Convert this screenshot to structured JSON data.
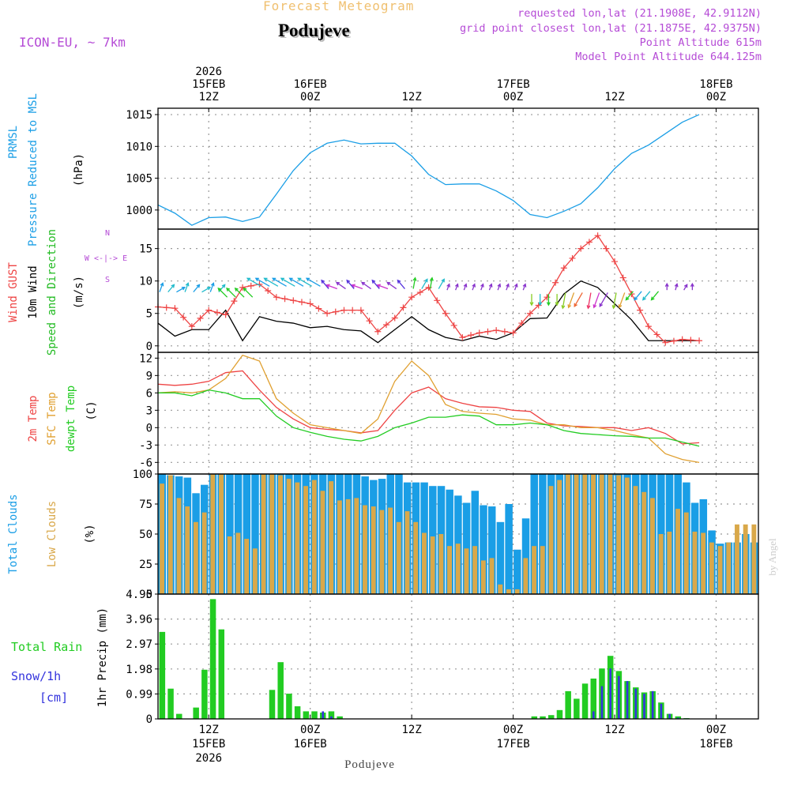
{
  "header": {
    "title": "Forecast Meteogram",
    "location": "Podujeve",
    "model": "ICON-EU, ~ 7km",
    "requested": "requested lon,lat (21.1908E, 42.9112N)",
    "gridpoint": "grid point closest lon,lat (21.1875E, 42.9375N)",
    "point_altitude": "Point Altitude 615m",
    "model_altitude": "Model Point Altitude 644.125m",
    "bottom_label": "Podujeve",
    "credit": "by Angel"
  },
  "colors": {
    "pressure": "#1a9ee6",
    "gust": "#ee4444",
    "wind": "#000000",
    "direction": "#22bb22",
    "temp": "#ee4444",
    "sfc": "#e0a030",
    "dewpt": "#22cc22",
    "total_clouds": "#1a9ee6",
    "low_clouds": "#d9a84a",
    "rain": "#22cc22",
    "snow": "#3333dd",
    "arrow_palette": [
      "#1a9ee6",
      "#22bbcc",
      "#22cc22",
      "#88cc22",
      "#e0a030",
      "#ee6633",
      "#ee3366",
      "#cc33cc",
      "#8833cc",
      "#5533dd"
    ]
  },
  "chart_data": [
    {
      "type": "line",
      "panel": "pressure",
      "ylabel": [
        "PRMSL",
        "Pressure Reduced to MSL",
        "(hPa)"
      ],
      "ylim": [
        997,
        1016
      ],
      "yticks": [
        1000,
        1005,
        1010,
        1015
      ],
      "x": [
        0,
        2,
        4,
        6,
        8,
        10,
        12,
        14,
        16,
        18,
        20,
        22,
        24,
        26,
        28,
        30,
        32,
        34,
        36,
        38,
        40,
        42,
        44,
        46,
        48,
        50,
        52,
        54,
        56,
        58,
        60,
        62,
        64
      ],
      "values": [
        1000.8,
        999.5,
        997.6,
        998.8,
        998.9,
        998.2,
        998.9,
        1002.5,
        1006.2,
        1009.0,
        1010.5,
        1011.0,
        1010.4,
        1010.5,
        1010.5,
        1008.5,
        1005.6,
        1004.0,
        1004.1,
        1004.1,
        1003.0,
        1001.5,
        999.3,
        998.8,
        999.8,
        1001.0,
        1003.5,
        1006.5,
        1008.9,
        1010.2,
        1012.0,
        1013.8,
        1015.0
      ]
    },
    {
      "type": "line",
      "panel": "wind",
      "ylabel": [
        "Wind GUST",
        "10m Wind",
        "Speed and Direction",
        "(m/s)"
      ],
      "compass": [
        "N",
        "W <-|-> E",
        "S"
      ],
      "ylim": [
        -1,
        18
      ],
      "yticks": [
        0,
        5,
        10,
        15
      ],
      "x": [
        0,
        2,
        4,
        6,
        8,
        10,
        12,
        14,
        16,
        18,
        20,
        22,
        24,
        26,
        28,
        30,
        32,
        34,
        36,
        38,
        40,
        42,
        44,
        46,
        48,
        50,
        52,
        54,
        56,
        58,
        60,
        62,
        64
      ],
      "series": [
        {
          "name": "Wind GUST",
          "values": [
            6.0,
            5.8,
            3.0,
            5.5,
            4.8,
            9.0,
            9.5,
            7.5,
            7.0,
            6.5,
            5.0,
            5.5,
            5.5,
            2.2,
            4.3,
            7.5,
            9.0,
            5.0,
            1.3,
            2.0,
            2.4,
            2.0,
            5.0,
            7.5,
            12.0,
            15.0,
            17.0,
            13.0,
            8.0,
            3.0,
            0.5,
            1.0,
            0.8
          ]
        },
        {
          "name": "10m Wind",
          "values": [
            3.5,
            1.5,
            2.5,
            2.5,
            5.5,
            0.8,
            4.5,
            3.8,
            3.5,
            2.8,
            3.0,
            2.5,
            2.3,
            0.5,
            2.5,
            4.5,
            2.5,
            1.3,
            0.8,
            1.5,
            1.0,
            2.0,
            4.2,
            4.3,
            8.0,
            10.0,
            9.0,
            6.5,
            4.0,
            0.8,
            0.8,
            0.8,
            0.8
          ]
        }
      ],
      "direction_arrows": {
        "start_hour": 0,
        "step_hours": 1,
        "count": 64
      }
    },
    {
      "type": "line",
      "panel": "temperature",
      "ylabel": [
        "2m Temp",
        "SFC Temp",
        "dewpt Temp",
        "(C)"
      ],
      "ylim": [
        -8,
        13
      ],
      "yticks": [
        -6,
        -3,
        0,
        3,
        6,
        9,
        12
      ],
      "x": [
        0,
        2,
        4,
        6,
        8,
        10,
        12,
        14,
        16,
        18,
        20,
        22,
        24,
        26,
        28,
        30,
        32,
        34,
        36,
        38,
        40,
        42,
        44,
        46,
        48,
        50,
        52,
        54,
        56,
        58,
        60,
        62,
        64
      ],
      "series": [
        {
          "name": "2m Temp",
          "values": [
            7.5,
            7.3,
            7.5,
            8.0,
            9.5,
            9.8,
            6.5,
            3.5,
            1.5,
            0.0,
            -0.3,
            -0.5,
            -0.9,
            -0.5,
            3.0,
            6.0,
            7.0,
            5.0,
            4.2,
            3.6,
            3.5,
            3.0,
            2.8,
            0.8,
            0.3,
            0.2,
            0.0,
            0.0,
            -0.5,
            0.0,
            -1.0,
            -2.8,
            -2.6
          ]
        },
        {
          "name": "SFC Temp",
          "values": [
            6.0,
            6.2,
            6.0,
            6.5,
            8.5,
            12.5,
            11.5,
            5.0,
            2.5,
            0.5,
            0.0,
            -0.5,
            -1.0,
            1.5,
            8.0,
            11.5,
            9.0,
            4.0,
            2.8,
            2.5,
            2.3,
            1.5,
            1.3,
            0.5,
            0.5,
            0.0,
            0.0,
            -0.5,
            -1.2,
            -1.8,
            -4.5,
            -5.5,
            -6.0
          ]
        },
        {
          "name": "dewpt Temp",
          "values": [
            6.0,
            6.0,
            5.5,
            6.5,
            6.0,
            5.0,
            5.0,
            2.0,
            0.0,
            -0.8,
            -1.5,
            -2.0,
            -2.3,
            -1.5,
            0.0,
            0.8,
            1.8,
            1.8,
            2.2,
            2.0,
            0.5,
            0.5,
            0.8,
            0.5,
            -0.5,
            -1.0,
            -1.2,
            -1.4,
            -1.5,
            -1.8,
            -1.8,
            -2.5,
            -3.2
          ]
        }
      ]
    },
    {
      "type": "bar",
      "panel": "clouds",
      "ylabel": [
        "Total Clouds",
        "Low Clouds",
        "(%)"
      ],
      "ylim": [
        0,
        100
      ],
      "yticks": [
        0,
        25,
        50,
        75,
        100
      ],
      "x_start_hour": 0,
      "series": [
        {
          "name": "Total Clouds",
          "values": [
            100,
            99,
            98,
            97,
            84,
            91,
            100,
            100,
            100,
            100,
            100,
            100,
            100,
            100,
            100,
            100,
            100,
            100,
            100,
            100,
            100,
            100,
            100,
            100,
            98,
            95,
            96,
            100,
            100,
            93,
            93,
            93,
            90,
            90,
            87,
            82,
            76,
            86,
            74,
            73,
            60,
            75,
            37,
            63,
            100,
            100,
            100,
            100,
            100,
            100,
            100,
            100,
            100,
            100,
            100,
            100,
            100,
            100,
            100,
            100,
            100,
            100,
            93,
            76,
            79,
            53,
            42,
            43,
            43,
            50,
            43
          ]
        },
        {
          "name": "Low Clouds",
          "values": [
            92,
            99,
            80,
            73,
            60,
            68,
            100,
            100,
            48,
            51,
            46,
            38,
            100,
            100,
            99,
            96,
            93,
            90,
            95,
            86,
            94,
            78,
            79,
            80,
            74,
            73,
            70,
            72,
            60,
            69,
            60,
            51,
            48,
            50,
            40,
            42,
            38,
            40,
            28,
            30,
            8,
            4,
            4,
            30,
            40,
            40,
            90,
            95,
            100,
            100,
            100,
            100,
            100,
            100,
            99,
            97,
            90,
            85,
            80,
            50,
            52,
            71,
            68,
            52,
            51,
            43,
            40,
            43,
            58,
            58,
            58
          ]
        }
      ]
    },
    {
      "type": "bar",
      "panel": "precipitation",
      "ylabel": [
        "Total Rain",
        "Snow/1h",
        "[cm]",
        "1hr Precip (mm)"
      ],
      "ylim": [
        0,
        4.95
      ],
      "yticks": [
        0,
        0.99,
        1.98,
        2.97,
        3.96,
        4.95
      ],
      "x_start_hour": 0,
      "series": [
        {
          "name": "Total Rain",
          "values": [
            3.45,
            1.2,
            0.2,
            0,
            0.45,
            1.95,
            4.75,
            3.55,
            0,
            0,
            0,
            0,
            0,
            1.15,
            2.25,
            1.0,
            0.5,
            0.3,
            0.3,
            0.25,
            0.3,
            0.1,
            0,
            0,
            0,
            0,
            0,
            0,
            0,
            0,
            0,
            0,
            0,
            0,
            0,
            0,
            0,
            0,
            0,
            0,
            0,
            0,
            0,
            0,
            0.1,
            0.1,
            0.15,
            0.35,
            1.1,
            0.8,
            1.4,
            1.6,
            2.0,
            2.5,
            1.9,
            1.5,
            1.25,
            1.05,
            1.1,
            0.65,
            0.2,
            0.1,
            0.03
          ]
        },
        {
          "name": "Snow/1h",
          "values": [
            0,
            0,
            0,
            0,
            0,
            0,
            0,
            0,
            0,
            0,
            0,
            0,
            0,
            0,
            0,
            0,
            0,
            0,
            0,
            0.3,
            0.1,
            0,
            0,
            0,
            0,
            0,
            0,
            0,
            0,
            0,
            0,
            0,
            0,
            0,
            0,
            0,
            0,
            0,
            0,
            0,
            0,
            0,
            0,
            0,
            0,
            0,
            0,
            0,
            0,
            0,
            0,
            0.3,
            1.3,
            2.0,
            1.7,
            1.5,
            1.2,
            1.0,
            1.1,
            0.6,
            0.2,
            0.05,
            0.02
          ]
        }
      ]
    }
  ],
  "time_axis": {
    "top": [
      {
        "hour": 6,
        "lines": [
          "2026",
          "15FEB",
          "12Z"
        ]
      },
      {
        "hour": 18,
        "lines": [
          "16FEB",
          "00Z"
        ]
      },
      {
        "hour": 30,
        "lines": [
          "12Z"
        ]
      },
      {
        "hour": 42,
        "lines": [
          "17FEB",
          "00Z"
        ]
      },
      {
        "hour": 54,
        "lines": [
          "12Z"
        ]
      },
      {
        "hour": 66,
        "lines": [
          "18FEB",
          "00Z"
        ]
      }
    ],
    "bottom": [
      {
        "hour": 6,
        "lines": [
          "12Z",
          "15FEB",
          "2026"
        ]
      },
      {
        "hour": 18,
        "lines": [
          "00Z",
          "16FEB"
        ]
      },
      {
        "hour": 30,
        "lines": [
          "12Z"
        ]
      },
      {
        "hour": 42,
        "lines": [
          "00Z",
          "17FEB"
        ]
      },
      {
        "hour": 54,
        "lines": [
          "12Z"
        ]
      },
      {
        "hour": 66,
        "lines": [
          "00Z",
          "18FEB"
        ]
      }
    ]
  }
}
